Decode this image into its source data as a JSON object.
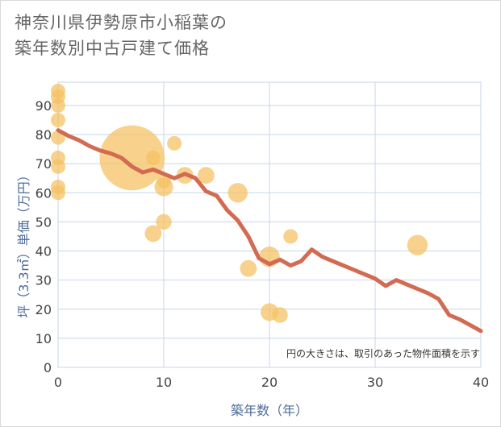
{
  "title_line1": "神奈川県伊勢原市小稲葉の",
  "title_line2": "築年数別中古戸建て価格",
  "chart_data": {
    "type": "scatter",
    "title": "神奈川県伊勢原市小稲葉の築年数別中古戸建て価格",
    "xlabel": "築年数（年）",
    "ylabel": "坪（3.3㎡）単価（万円）",
    "xlim": [
      0,
      40
    ],
    "ylim": [
      0,
      98
    ],
    "xticks": [
      0,
      10,
      20,
      30,
      40
    ],
    "yticks": [
      0,
      10,
      20,
      30,
      40,
      50,
      60,
      70,
      80,
      90
    ],
    "grid": true,
    "note": "円の大きさは、取引のあった物件面積を示す",
    "colors": {
      "bubble": "#f5c060",
      "line": "#d26b52",
      "grid": "#c8d6e8",
      "axis_text": "#4d6d9a"
    },
    "scatter": [
      {
        "x": 0,
        "y": 95,
        "size": 3
      },
      {
        "x": 0,
        "y": 93,
        "size": 3
      },
      {
        "x": 0,
        "y": 90,
        "size": 3
      },
      {
        "x": 0,
        "y": 85,
        "size": 3
      },
      {
        "x": 0,
        "y": 79,
        "size": 3
      },
      {
        "x": 0,
        "y": 72,
        "size": 3
      },
      {
        "x": 0,
        "y": 69,
        "size": 3
      },
      {
        "x": 0,
        "y": 62,
        "size": 3
      },
      {
        "x": 0,
        "y": 60,
        "size": 3
      },
      {
        "x": 7,
        "y": 72,
        "size": 60
      },
      {
        "x": 9,
        "y": 72,
        "size": 3
      },
      {
        "x": 9,
        "y": 46,
        "size": 4
      },
      {
        "x": 10,
        "y": 64,
        "size": 3
      },
      {
        "x": 10,
        "y": 62,
        "size": 5
      },
      {
        "x": 10,
        "y": 50,
        "size": 3.5
      },
      {
        "x": 11,
        "y": 77,
        "size": 3
      },
      {
        "x": 12,
        "y": 66,
        "size": 4
      },
      {
        "x": 14,
        "y": 66,
        "size": 4
      },
      {
        "x": 17,
        "y": 60,
        "size": 5.5
      },
      {
        "x": 18,
        "y": 34,
        "size": 4
      },
      {
        "x": 20,
        "y": 38,
        "size": 6
      },
      {
        "x": 20,
        "y": 19,
        "size": 4.5
      },
      {
        "x": 21,
        "y": 18,
        "size": 3.5
      },
      {
        "x": 22,
        "y": 45,
        "size": 3
      },
      {
        "x": 34,
        "y": 42,
        "size": 6
      }
    ],
    "trend": {
      "x": [
        0,
        1,
        2,
        3,
        4,
        5,
        6,
        7,
        8,
        9,
        10,
        11,
        12,
        13,
        14,
        15,
        16,
        17,
        18,
        19,
        20,
        21,
        22,
        23,
        24,
        25,
        26,
        27,
        28,
        29,
        30,
        31,
        32,
        33,
        34,
        35,
        36,
        37,
        38,
        39,
        40
      ],
      "y": [
        81.5,
        79.5,
        78,
        76,
        74.5,
        73.5,
        72,
        69,
        67,
        68,
        66.5,
        65,
        66.5,
        65,
        60.5,
        59,
        54,
        50.5,
        45,
        37.5,
        35.5,
        37,
        35,
        36.5,
        40.5,
        38,
        36.5,
        35,
        33.5,
        32,
        30.5,
        28,
        30,
        28.5,
        27,
        25.5,
        23.5,
        18,
        16.5,
        14.5,
        12.5
      ]
    }
  }
}
